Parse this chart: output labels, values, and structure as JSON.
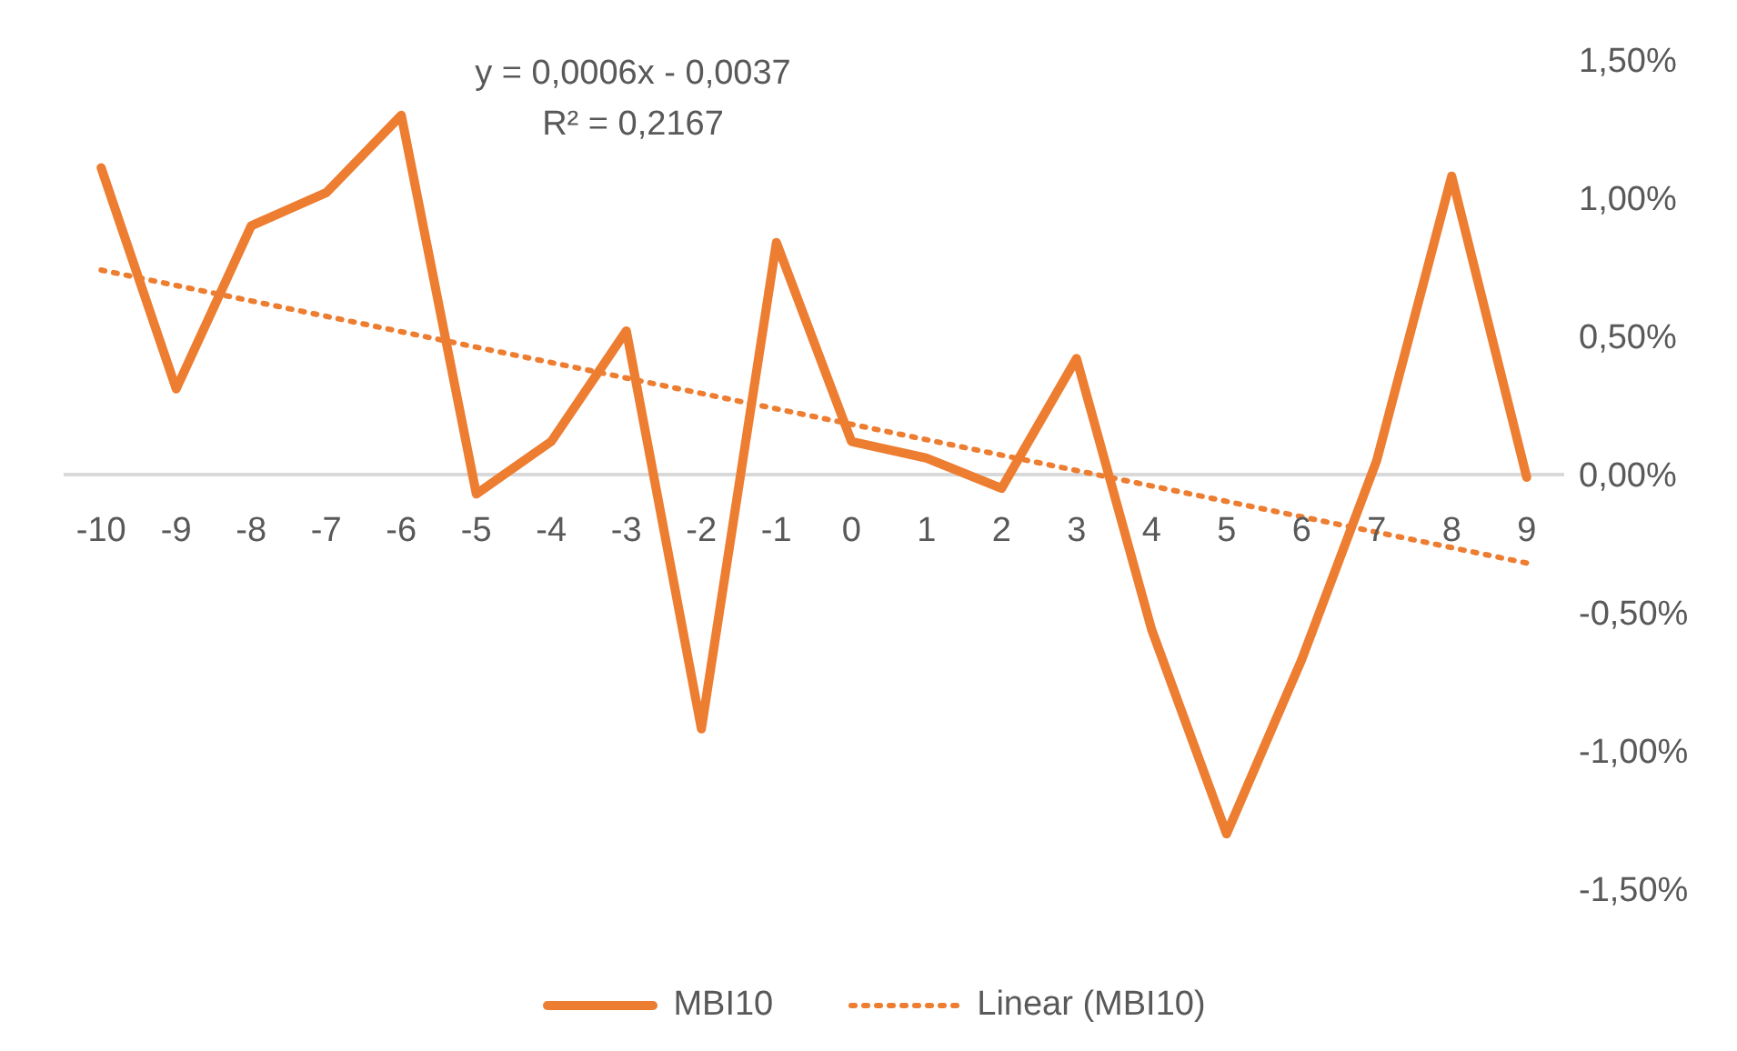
{
  "chart_data": {
    "type": "line",
    "x": [
      -10,
      -9,
      -8,
      -7,
      -6,
      -5,
      -4,
      -3,
      -2,
      -1,
      0,
      1,
      2,
      3,
      4,
      5,
      6,
      7,
      8,
      9
    ],
    "xlim": [
      -10.5,
      9.5
    ],
    "xticks": [
      -10,
      -9,
      -8,
      -7,
      -6,
      -5,
      -4,
      -3,
      -2,
      -1,
      0,
      1,
      2,
      3,
      4,
      5,
      6,
      7,
      8,
      9
    ],
    "ylim": [
      -1.5,
      1.5
    ],
    "yticks": [
      {
        "value": -1.5,
        "label": "-1,50%"
      },
      {
        "value": -1,
        "label": "-1,00%"
      },
      {
        "value": -0.5,
        "label": "-0,50%"
      },
      {
        "value": 0,
        "label": "0,00%"
      },
      {
        "value": 0.5,
        "label": "0,50%"
      },
      {
        "value": 1,
        "label": "1,00%"
      },
      {
        "value": 1.5,
        "label": "1,50%"
      }
    ],
    "series": [
      {
        "name": "MBI10",
        "color": "#ed7d31",
        "line_style": "solid",
        "values": [
          1.11,
          0.31,
          0.9,
          1.02,
          1.3,
          -0.07,
          0.12,
          0.52,
          -0.92,
          0.84,
          0.12,
          0.06,
          -0.05,
          0.42,
          -0.56,
          -1.3,
          -0.67,
          0.05,
          1.08,
          -0.01
        ]
      },
      {
        "name": "Linear (MBI10)",
        "type": "line",
        "color": "#ed7d31",
        "line_style": "dotted",
        "x": [
          -10,
          9
        ],
        "values": [
          0.74,
          -0.32
        ]
      }
    ],
    "annotations": [
      "y = 0,0006x - 0,0037",
      "R² = 0,2167"
    ],
    "legend": "bottom",
    "grid": false,
    "marker": "none"
  }
}
